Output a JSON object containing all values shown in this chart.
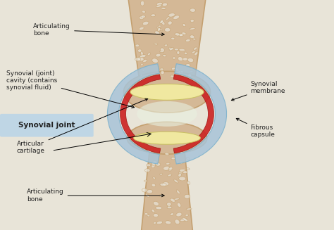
{
  "bg_color": "#e8e4d8",
  "title": "",
  "labels": {
    "articulating_bone_top": "Articulating\nbone",
    "synovial_cavity": "Synovial (joint)\ncavity (contains\nsynovial fluid)",
    "synovial_joint": "Synovial joint",
    "articular_cartilage": "Articular\ncartilage",
    "articulating_bone_bottom": "Articulating\nbone",
    "synovial_membrane": "Synovial\nmembrane",
    "fibrous_capsule": "Fibrous\ncapsule"
  },
  "colors": {
    "bone": "#d4b896",
    "bone_dark": "#c4a070",
    "cartilage": "#f0e8a0",
    "synovial_membrane": "#cc2222",
    "fibrous_capsule": "#a8c4d8",
    "joint_cavity": "#e8f0e0",
    "label_box": "#b8d4e8",
    "text": "#222222",
    "line": "#111111",
    "spongy": "#c09860",
    "bg": "#e8e4d8"
  }
}
